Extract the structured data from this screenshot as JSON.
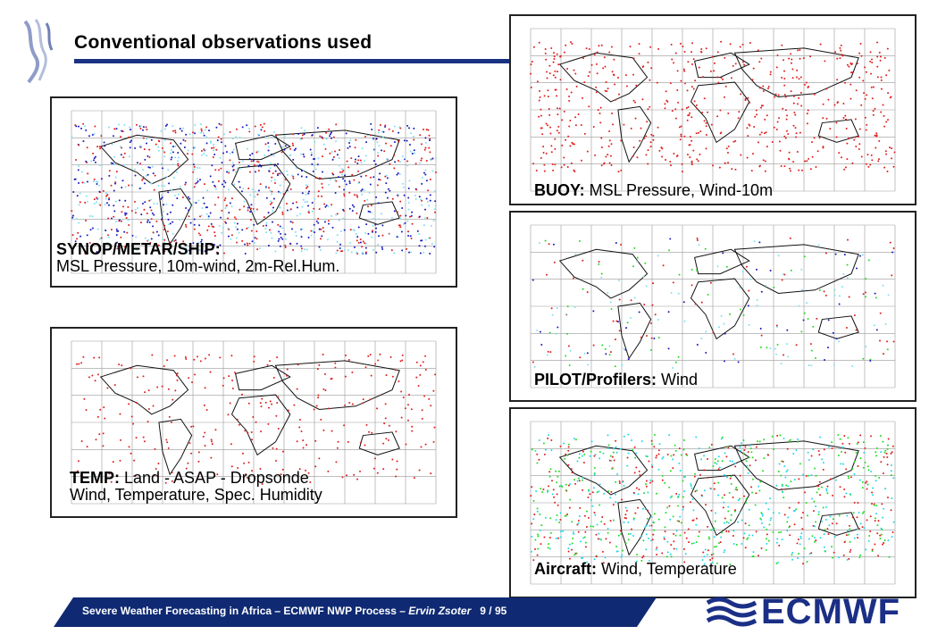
{
  "slide": {
    "title": "Conventional observations used"
  },
  "panels": {
    "synop": {
      "bold": "SYNOP/METAR/SHIP:",
      "line2": "MSL Pressure, 10m-wind, 2m-Rel.Hum."
    },
    "temp": {
      "bold": "TEMP:",
      "rest": " Land - ASAP - Dropsonde",
      "line2": "Wind, Temperature, Spec. Humidity"
    },
    "buoy": {
      "bold": "BUOY:",
      "rest": " MSL Pressure, Wind-10m"
    },
    "pilot": {
      "bold": "PILOT/Profilers:",
      "rest": " Wind"
    },
    "aircraft": {
      "bold": "Aircraft:",
      "rest": " Wind, Temperature"
    }
  },
  "footer": {
    "text": "Severe Weather Forecasting in Africa – ECMWF NWP Process – ",
    "author": "Ervin Zsoter",
    "page": "9 / 95"
  },
  "logo": {
    "text": "ECMWF"
  },
  "colors": {
    "accent": "#0f2a73",
    "synop_land": "#e02020",
    "synop_blue": "#1a1ac0",
    "ship": "#7fe0f0",
    "aircraft_green": "#22dd22",
    "aircraft_cyan": "#22d8e8"
  }
}
